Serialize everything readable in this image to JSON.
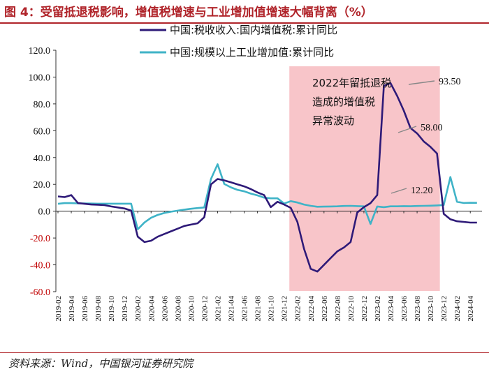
{
  "header": {
    "title": "图 4：受留抵退税影响，增值税增速与工业增加值增速大幅背离（%）"
  },
  "footer": {
    "source": "资料来源：Wind，中国银河证券研究院"
  },
  "colors": {
    "accent": "#b0242a",
    "series_tax": "#2e1a78",
    "series_industry": "#3fb3c7",
    "shade": "#f8c5c9",
    "negative_tick": "#c00000"
  },
  "chart_data": {
    "type": "line",
    "title": "",
    "xlabel": "",
    "ylabel": "",
    "ylim": [
      -60,
      120
    ],
    "yticks": [
      "120.0",
      "100.0",
      "80.0",
      "60.0",
      "40.0",
      "20.0",
      "0.0",
      "-20.0",
      "-40.0",
      "-60.0"
    ],
    "grid": false,
    "legend_position": "top",
    "x_tick_labels": [
      "2019-02",
      "2019-04",
      "2019-06",
      "2019-08",
      "2019-10",
      "2019-12",
      "2020-02",
      "2020-04",
      "2020-06",
      "2020-08",
      "2020-10",
      "2020-12",
      "2021-02",
      "2021-04",
      "2021-06",
      "2021-08",
      "2021-10",
      "2021-12",
      "2022-02",
      "2022-04",
      "2022-06",
      "2022-08",
      "2022-10",
      "2022-12",
      "2023-02",
      "2023-04",
      "2023-06",
      "2023-08",
      "2023-10",
      "2023-12",
      "2024-02",
      "2024-04"
    ],
    "x": [
      "2019-02",
      "2019-03",
      "2019-04",
      "2019-05",
      "2019-06",
      "2019-07",
      "2019-08",
      "2019-09",
      "2019-10",
      "2019-11",
      "2019-12",
      "2020-01",
      "2020-02",
      "2020-03",
      "2020-04",
      "2020-05",
      "2020-06",
      "2020-07",
      "2020-08",
      "2020-09",
      "2020-10",
      "2020-11",
      "2020-12",
      "2021-01",
      "2021-02",
      "2021-03",
      "2021-04",
      "2021-05",
      "2021-06",
      "2021-07",
      "2021-08",
      "2021-09",
      "2021-10",
      "2021-11",
      "2021-12",
      "2022-01",
      "2022-02",
      "2022-03",
      "2022-04",
      "2022-05",
      "2022-06",
      "2022-07",
      "2022-08",
      "2022-09",
      "2022-10",
      "2022-11",
      "2022-12",
      "2023-01",
      "2023-02",
      "2023-03",
      "2023-04",
      "2023-05",
      "2023-06",
      "2023-07",
      "2023-08",
      "2023-09",
      "2023-10",
      "2023-11",
      "2023-12",
      "2024-01",
      "2024-02",
      "2024-03",
      "2024-04",
      "2024-05"
    ],
    "series": [
      {
        "name": "中国:税收收入:国内增值税:累计同比",
        "values": [
          11,
          10.5,
          12,
          6,
          5.5,
          5,
          4.8,
          4.5,
          3.5,
          2.8,
          2,
          0.5,
          -19,
          -23,
          -22,
          -19,
          -17,
          -15,
          -13,
          -11,
          -10,
          -9,
          -4.5,
          20,
          24,
          23,
          21.5,
          20,
          18.5,
          16.5,
          14,
          12,
          3,
          7,
          5,
          2.5,
          -8,
          -28,
          -43,
          -45,
          -40,
          -35,
          -30,
          -27,
          -23,
          -1,
          3,
          6,
          12,
          93.5,
          95.5,
          86,
          75,
          62,
          58,
          52,
          48,
          43,
          -2,
          -6,
          -7.5,
          -8,
          -8.5,
          -8.5
        ],
        "annotations": [
          "12.20",
          "58.00",
          "93.50"
        ]
      },
      {
        "name": "中国:规模以上工业增加值:累计同比",
        "values": [
          5.5,
          6,
          6,
          5.8,
          5.8,
          5.7,
          5.6,
          5.6,
          5.6,
          5.6,
          5.6,
          5.6,
          -13.5,
          -8.4,
          -4.9,
          -2.8,
          -1.3,
          -0.4,
          0.4,
          1.2,
          1.8,
          2.3,
          2.8,
          24,
          35,
          20.3,
          17.8,
          15.9,
          14.8,
          13.1,
          11.8,
          10.1,
          9.6,
          9.6,
          5.7,
          7.5,
          6.5,
          5,
          4,
          3.3,
          3.4,
          3.5,
          3.6,
          3.9,
          4,
          3.8,
          3.6,
          -9.5,
          3.5,
          3,
          3.6,
          3.6,
          3.8,
          3.7,
          3.9,
          4,
          4.1,
          4.3,
          4.6,
          25.5,
          7,
          6.1,
          6.3,
          6.2
        ]
      }
    ],
    "shaded_region": {
      "from": "2022-01",
      "to": "2023-11"
    },
    "annotation_text": [
      "2022年留抵退税",
      "造成的增值税",
      "异常波动"
    ]
  }
}
